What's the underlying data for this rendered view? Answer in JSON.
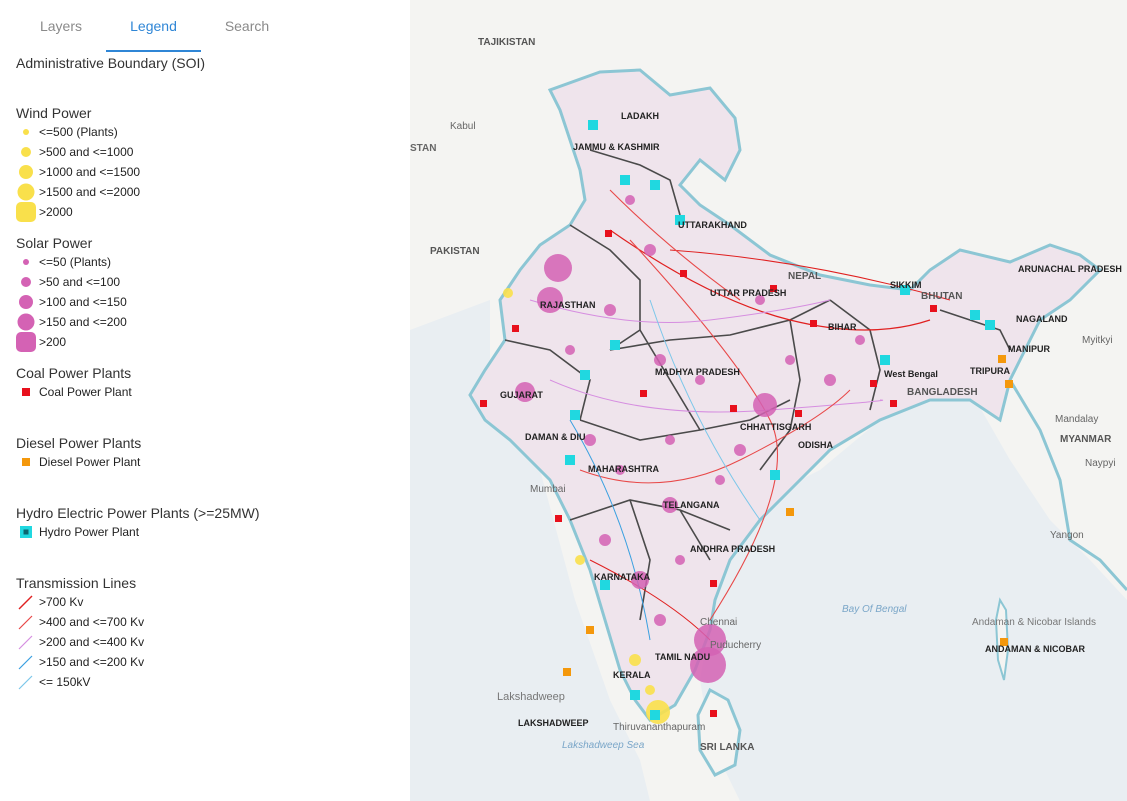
{
  "tabs": [
    {
      "label": "Layers",
      "active": false
    },
    {
      "label": "Legend",
      "active": true
    },
    {
      "label": "Search",
      "active": false
    }
  ],
  "legend": {
    "admin_boundary": "Administrative Boundary (SOI)",
    "wind": {
      "title": "Wind Power",
      "color": "#f9e04b",
      "items": [
        "<=500 (Plants)",
        ">500 and <=1000",
        ">1000 and <=1500",
        ">1500 and <=2000",
        ">2000"
      ]
    },
    "solar": {
      "title": "Solar Power",
      "color": "#d462b4",
      "items": [
        "<=50 (Plants)",
        ">50 and <=100",
        ">100 and <=150",
        ">150 and <=200",
        ">200"
      ]
    },
    "coal": {
      "title": "Coal Power Plants",
      "item": "Coal Power Plant",
      "color": "#e8101c"
    },
    "diesel": {
      "title": "Diesel Power Plants",
      "item": "Diesel Power Plant",
      "color": "#f4980c"
    },
    "hydro": {
      "title": "Hydro Electric Power Plants (>=25MW)",
      "item": "Hydro Power Plant",
      "color": "#20d8e0"
    },
    "transmission": {
      "title": "Transmission Lines",
      "items": [
        {
          "label": ">700 Kv",
          "color": "#e02020"
        },
        {
          "label": ">400 and <=700 Kv",
          "color": "#e84848"
        },
        {
          "label": ">200 and <=400 Kv",
          "color": "#d68ee0"
        },
        {
          "label": ">150 and <=200 Kv",
          "color": "#3aa0e0"
        },
        {
          "label": "<= 150kV",
          "color": "#7cc7ea"
        }
      ]
    }
  },
  "map": {
    "colors": {
      "land": "#f4f4f2",
      "water": "#e9eef2",
      "coast": "#8cc6d4",
      "boundary": "#4a4a4a"
    },
    "labels": {
      "countries": [
        "TAJIKISTAN",
        "PAKISTAN",
        "NEPAL",
        "BHUTAN",
        "BANGLADESH",
        "MYANMAR",
        "SRI LANKA"
      ],
      "cities": [
        "Kabul",
        "Mandalay",
        "Naypyi",
        "Yangon",
        "Myitkyi",
        "Mumbai",
        "Chennai",
        "Thiruvananthapuram"
      ],
      "states": [
        "LADAKH",
        "JAMMU & KASHMIR",
        "UTTARAKHAND",
        "RAJASTHAN",
        "GUJARAT",
        "UTTAR PRADESH",
        "BIHAR",
        "MADHYA PRADESH",
        "CHHATTISGARH",
        "ODISHA",
        "MAHARASHTRA",
        "TELANGANA",
        "ANDHRA PRADESH",
        "KARNATAKA",
        "KERALA",
        "TAMIL NADU",
        "ARUNACHAL PRADESH",
        "NAGALAND",
        "MANIPUR",
        "TRIPURA",
        "SIKKIM",
        "DAMAN & DIU",
        "LAKSHADWEEP",
        "ANDAMAN & NICOBAR",
        "Puducherry",
        "West Bengal"
      ],
      "waters": [
        "Bay Of Bengal",
        "Lakshadweep Sea"
      ],
      "islands": [
        "Lakshadweep",
        "Andaman & Nicobar Islands"
      ],
      "edge": [
        "STAN"
      ]
    }
  }
}
